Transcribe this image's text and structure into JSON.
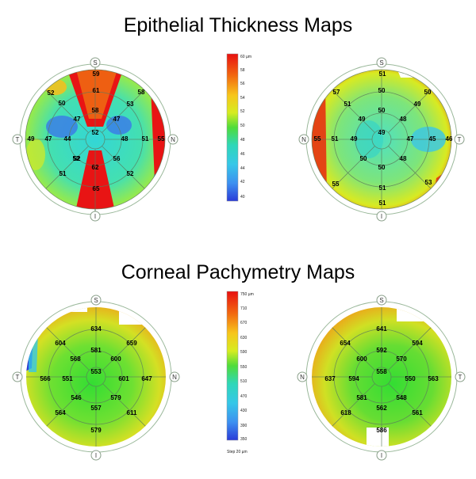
{
  "titles": {
    "epithelial": "Epithelial Thickness Maps",
    "pachymetry": "Corneal Pachymetry Maps"
  },
  "orientation": {
    "superior": "S",
    "inferior": "I",
    "temporal": "T",
    "nasal": "N"
  },
  "epithelial_scale": {
    "unit_label": "60 µm",
    "ticks": [
      "58",
      "56",
      "54",
      "52",
      "50",
      "48",
      "46",
      "44",
      "42",
      "40"
    ]
  },
  "pachymetry_scale": {
    "unit_label": "750 µm",
    "ticks": [
      "710",
      "670",
      "630",
      "590",
      "550",
      "510",
      "470",
      "430",
      "390",
      "350"
    ],
    "step_label": "Step 20 µm"
  },
  "maps": {
    "epi_left": {
      "side_left": "T",
      "side_right": "N",
      "values": {
        "center": "52",
        "inner": [
          "58",
          "47",
          "48",
          "56",
          "62",
          "52",
          "44",
          "47"
        ],
        "mid": [
          "61",
          "53",
          "51",
          "52",
          "47",
          "50"
        ],
        "outer": [
          "59",
          "58",
          "55",
          "52",
          "65",
          "51",
          "49",
          "52"
        ]
      }
    },
    "epi_right": {
      "side_left": "N",
      "side_right": "T",
      "values": {
        "center": "49",
        "inner": [
          "50",
          "48",
          "47",
          "48",
          "50",
          "50",
          "49",
          "49"
        ],
        "mid": [
          "49",
          "50",
          "45",
          "51",
          "51",
          "51"
        ],
        "outer": [
          "51",
          "50",
          "46",
          "53",
          "51",
          "55",
          "55",
          "57"
        ]
      }
    },
    "pachy_left": {
      "side_left": "T",
      "side_right": "N",
      "values": {
        "center": "553",
        "inner": [
          "581",
          "600",
          "601",
          "579",
          "557",
          "546",
          "551",
          "568"
        ],
        "mid": [
          "659",
          "647",
          "611",
          "579",
          "564",
          "566",
          "604"
        ],
        "outer": [
          "634"
        ]
      }
    },
    "pachy_right": {
      "side_left": "N",
      "side_right": "T",
      "values": {
        "center": "558",
        "inner": [
          "592",
          "570",
          "550",
          "548",
          "562",
          "581",
          "594",
          "600"
        ],
        "mid": [
          "594",
          "563",
          "561",
          "586",
          "618",
          "637",
          "654"
        ],
        "outer": [
          "641"
        ]
      }
    }
  }
}
